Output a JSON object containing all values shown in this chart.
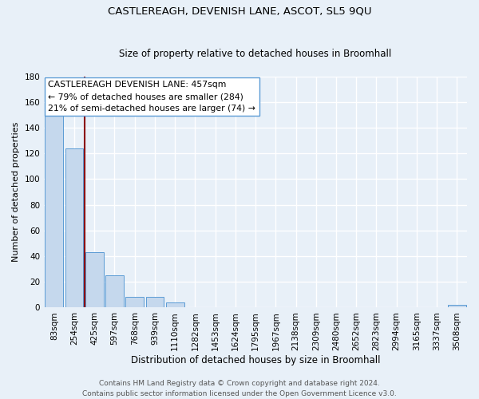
{
  "title1": "CASTLEREAGH, DEVENISH LANE, ASCOT, SL5 9QU",
  "title2": "Size of property relative to detached houses in Broomhall",
  "xlabel": "Distribution of detached houses by size in Broomhall",
  "ylabel": "Number of detached properties",
  "bar_labels": [
    "83sqm",
    "254sqm",
    "425sqm",
    "597sqm",
    "768sqm",
    "939sqm",
    "1110sqm",
    "1282sqm",
    "1453sqm",
    "1624sqm",
    "1795sqm",
    "1967sqm",
    "2138sqm",
    "2309sqm",
    "2480sqm",
    "2652sqm",
    "2823sqm",
    "2994sqm",
    "3165sqm",
    "3337sqm",
    "3508sqm"
  ],
  "bar_heights": [
    150,
    124,
    43,
    25,
    8,
    8,
    4,
    0,
    0,
    0,
    0,
    0,
    0,
    0,
    0,
    0,
    0,
    0,
    0,
    0,
    2
  ],
  "bar_color": "#c5d8ed",
  "bar_edge_color": "#5b9bd5",
  "vline_x_index": 1.5,
  "vline_color": "#8b0000",
  "ylim": [
    0,
    180
  ],
  "yticks": [
    0,
    20,
    40,
    60,
    80,
    100,
    120,
    140,
    160,
    180
  ],
  "annotation_title": "CASTLEREAGH DEVENISH LANE: 457sqm",
  "annotation_line1": "← 79% of detached houses are smaller (284)",
  "annotation_line2": "21% of semi-detached houses are larger (74) →",
  "footer1": "Contains HM Land Registry data © Crown copyright and database right 2024.",
  "footer2": "Contains public sector information licensed under the Open Government Licence v3.0.",
  "bg_color": "#e8f0f8",
  "plot_bg_color": "#e8f0f8",
  "grid_color": "#ffffff",
  "annotation_box_color": "#ffffff",
  "title1_fontsize": 9.5,
  "title2_fontsize": 8.5,
  "xlabel_fontsize": 8.5,
  "ylabel_fontsize": 8.0,
  "tick_fontsize": 7.5,
  "footer_fontsize": 6.5,
  "annotation_fontsize": 7.8
}
